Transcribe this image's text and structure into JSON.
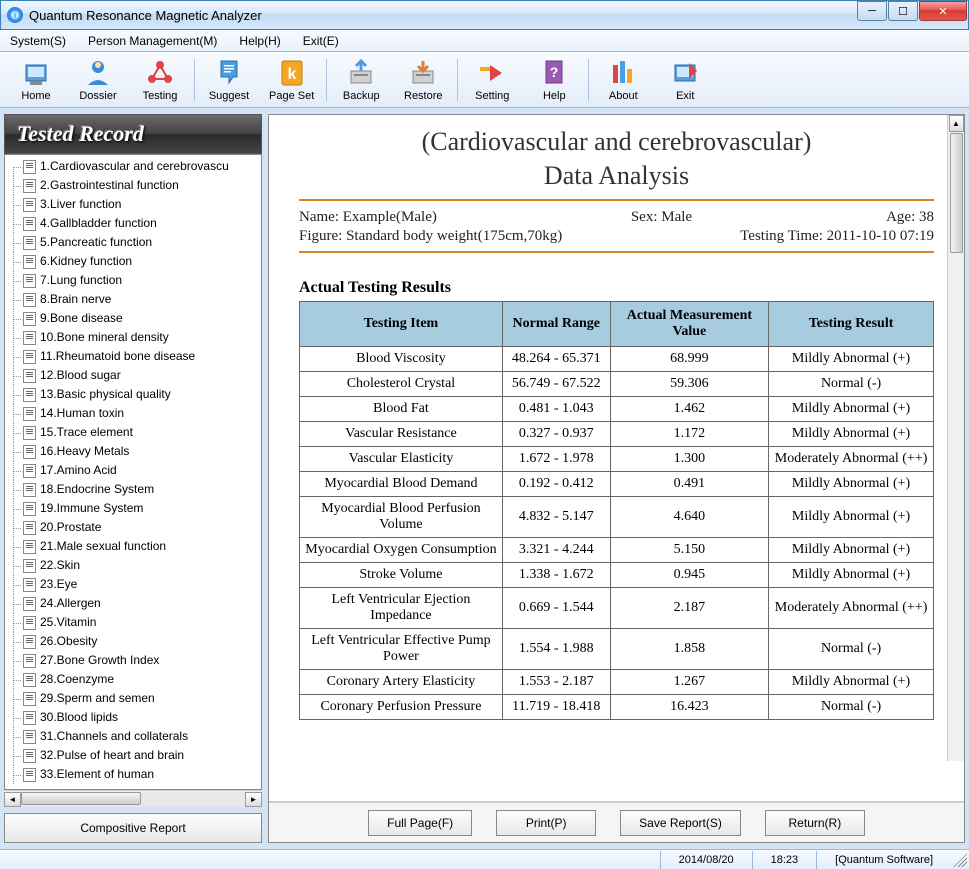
{
  "window": {
    "title": "Quantum Resonance Magnetic Analyzer"
  },
  "menu": {
    "system": "System(S)",
    "person": "Person Management(M)",
    "help": "Help(H)",
    "exit": "Exit(E)"
  },
  "toolbar": {
    "home": "Home",
    "dossier": "Dossier",
    "testing": "Testing",
    "suggest": "Suggest",
    "pageset": "Page Set",
    "backup": "Backup",
    "restore": "Restore",
    "setting": "Setting",
    "help": "Help",
    "about": "About",
    "exit": "Exit"
  },
  "sidebar": {
    "header": "Tested Record",
    "items": [
      "1.Cardiovascular and cerebrovascu",
      "2.Gastrointestinal function",
      "3.Liver function",
      "4.Gallbladder function",
      "5.Pancreatic function",
      "6.Kidney function",
      "7.Lung function",
      "8.Brain nerve",
      "9.Bone disease",
      "10.Bone mineral density",
      "11.Rheumatoid bone disease",
      "12.Blood sugar",
      "13.Basic physical quality",
      "14.Human toxin",
      "15.Trace element",
      "16.Heavy Metals",
      "17.Amino Acid",
      "18.Endocrine System",
      "19.Immune System",
      "20.Prostate",
      "21.Male sexual function",
      "22.Skin",
      "23.Eye",
      "24.Allergen",
      "25.Vitamin",
      "26.Obesity",
      "27.Bone Growth Index",
      "28.Coenzyme",
      "29.Sperm and semen",
      "30.Blood lipids",
      "31.Channels and collaterals",
      "32.Pulse of heart and brain",
      "33.Element of human"
    ],
    "button": "Compositive Report"
  },
  "report": {
    "title_line1": "(Cardiovascular and cerebrovascular)",
    "title_line2": "Data Analysis",
    "meta": {
      "name_label": "Name: Example(Male)",
      "sex_label": "Sex: Male",
      "age_label": "Age: 38",
      "figure_label": "Figure: Standard body weight(175cm,70kg)",
      "testtime_label": "Testing Time: 2011-10-10 07:19"
    },
    "section_title": "Actual Testing Results",
    "table": {
      "columns": [
        "Testing Item",
        "Normal Range",
        "Actual Measurement Value",
        "Testing Result"
      ],
      "header_bg": "#a7cce0",
      "border_color": "#666666",
      "col_widths": [
        "32%",
        "17%",
        "25%",
        "26%"
      ],
      "rows": [
        [
          "Blood Viscosity",
          "48.264 - 65.371",
          "68.999",
          "Mildly Abnormal (+)"
        ],
        [
          "Cholesterol Crystal",
          "56.749 - 67.522",
          "59.306",
          "Normal (-)"
        ],
        [
          "Blood Fat",
          "0.481 - 1.043",
          "1.462",
          "Mildly Abnormal (+)"
        ],
        [
          "Vascular Resistance",
          "0.327 - 0.937",
          "1.172",
          "Mildly Abnormal (+)"
        ],
        [
          "Vascular Elasticity",
          "1.672 - 1.978",
          "1.300",
          "Moderately Abnormal (++)"
        ],
        [
          "Myocardial Blood Demand",
          "0.192 - 0.412",
          "0.491",
          "Mildly Abnormal (+)"
        ],
        [
          "Myocardial Blood Perfusion Volume",
          "4.832 - 5.147",
          "4.640",
          "Mildly Abnormal (+)"
        ],
        [
          "Myocardial Oxygen Consumption",
          "3.321 - 4.244",
          "5.150",
          "Mildly Abnormal (+)"
        ],
        [
          "Stroke Volume",
          "1.338 - 1.672",
          "0.945",
          "Mildly Abnormal (+)"
        ],
        [
          "Left Ventricular Ejection Impedance",
          "0.669 - 1.544",
          "2.187",
          "Moderately Abnormal (++)"
        ],
        [
          "Left Ventricular Effective Pump Power",
          "1.554 - 1.988",
          "1.858",
          "Normal (-)"
        ],
        [
          "Coronary Artery Elasticity",
          "1.553 - 2.187",
          "1.267",
          "Mildly Abnormal (+)"
        ],
        [
          "Coronary Perfusion Pressure",
          "11.719 - 18.418",
          "16.423",
          "Normal (-)"
        ]
      ]
    }
  },
  "actions": {
    "fullpage": "Full Page(F)",
    "print": "Print(P)",
    "save": "Save Report(S)",
    "return": "Return(R)"
  },
  "status": {
    "date": "2014/08/20",
    "time": "18:23",
    "software": "[Quantum Software]"
  },
  "icons": {
    "home_svg": "<svg width='32' height='32' viewBox='0 0 32 32'><rect x='6' y='8' width='20' height='16' fill='#5aa0e0' stroke='#2c6aa8'/><rect x='8' y='10' width='16' height='10' fill='#cfe8ff'/><rect x='10' y='24' width='12' height='4' fill='#888'/></svg>",
    "dossier_svg": "<svg width='32' height='32' viewBox='0 0 32 32'><circle cx='16' cy='10' r='6' fill='#3b8cd6'/><path d='M6 28 Q16 18 26 28 Z' fill='#3b8cd6'/><circle cx='16' cy='8' r='3' fill='#ffdca8'/></svg>",
    "testing_svg": "<svg width='32' height='32' viewBox='0 0 32 32'><circle cx='16' cy='8' r='4' fill='#e04545'/><circle cx='8' cy='22' r='4' fill='#e04545'/><circle cx='24' cy='22' r='4' fill='#e04545'/><line x1='16' y1='8' x2='8' y2='22' stroke='#e04545' stroke-width='2'/><line x1='16' y1='8' x2='24' y2='22' stroke='#e04545' stroke-width='2'/><line x1='8' y1='22' x2='24' y2='22' stroke='#e04545' stroke-width='2'/></svg>",
    "suggest_svg": "<svg width='32' height='32' viewBox='0 0 32 32'><path d='M8 4 L24 4 L24 20 L20 20 L16 26 L16 20 L8 20 Z' fill='#4a9de0' stroke='#2c6aa8'/><rect x='11' y='8' width='10' height='1.5' fill='#fff'/><rect x='11' y='11' width='10' height='1.5' fill='#fff'/><rect x='11' y='14' width='7' height='1.5' fill='#fff'/></svg>",
    "pageset_svg": "<svg width='32' height='32' viewBox='0 0 32 32'><rect x='6' y='4' width='20' height='24' rx='2' fill='#f5a623' stroke='#c77d0e'/><text x='16' y='22' font-size='16' font-weight='bold' text-anchor='middle' fill='#fff'>k</text></svg>",
    "backup_svg": "<svg width='32' height='32' viewBox='0 0 32 32'><rect x='6' y='14' width='20' height='12' fill='#d0d0d0' stroke='#888'/><rect x='9' y='17' width='14' height='2' fill='#888'/><path d='M16 4 L16 14 M11 9 L16 4 L21 9' stroke='#4a9de0' stroke-width='3' fill='none'/></svg>",
    "restore_svg": "<svg width='32' height='32' viewBox='0 0 32 32'><rect x='6' y='14' width='20' height='12' fill='#d0d0d0' stroke='#888'/><rect x='9' y='17' width='14' height='2' fill='#888'/><path d='M16 14 L16 4 M11 9 L16 14 L21 9' stroke='#e07d3b' stroke-width='3' fill='none'/></svg>",
    "setting_svg": "<svg width='32' height='32' viewBox='0 0 32 32'><path d='M4 14 L14 14 L14 10 L4 10 Z' fill='#f5a623'/><path d='M14 8 L26 16 L14 24 Z' fill='#e04545'/></svg>",
    "help_svg": "<svg width='32' height='32' viewBox='0 0 32 32'><rect x='8' y='4' width='16' height='22' fill='#9b59b6' stroke='#6a3a80'/><text x='16' y='20' font-size='14' font-weight='bold' text-anchor='middle' fill='#fff'>?</text></svg>",
    "about_svg": "<svg width='32' height='32' viewBox='0 0 32 32'><rect x='6' y='8' width='5' height='18' fill='#e04545'/><rect x='13' y='4' width='5' height='22' fill='#4a9de0'/><rect x='20' y='12' width='5' height='14' fill='#f5a623'/></svg>",
    "exit_svg": "<svg width='32' height='32' viewBox='0 0 32 32'><rect x='6' y='8' width='20' height='16' fill='#5aa0e0' stroke='#2c6aa8'/><rect x='8' y='10' width='16' height='10' fill='#cfe8ff'/><path d='M20 6 L28 14 L20 22' fill='#e04545'/></svg>"
  }
}
